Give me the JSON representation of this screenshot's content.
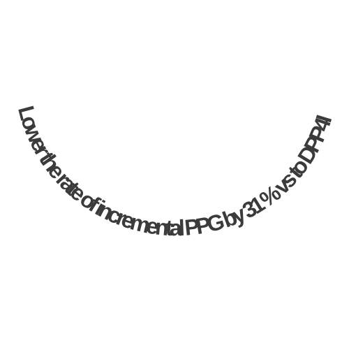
{
  "curved_text": {
    "text": "Lower the rate of incremental PPG by 31 % vs to DPP4I",
    "color": "#3b3b3b"
  }
}
